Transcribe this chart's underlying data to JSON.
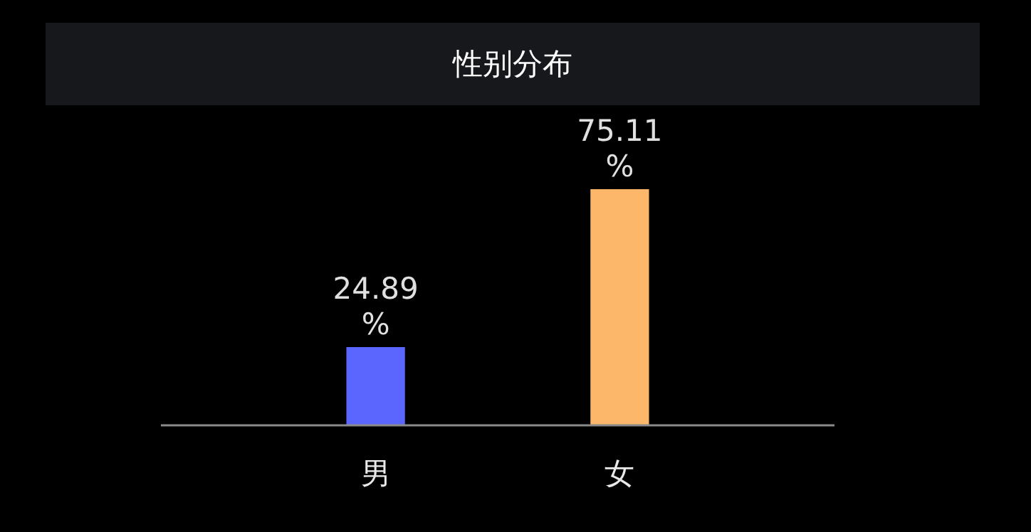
{
  "chart_data": {
    "type": "bar",
    "title": "性别分布",
    "categories": [
      "男",
      "女"
    ],
    "values": [
      24.89,
      75.11
    ],
    "colors": [
      "#5a66fe",
      "#fdb76a"
    ],
    "value_labels": [
      "24.89%",
      "75.11%"
    ]
  }
}
